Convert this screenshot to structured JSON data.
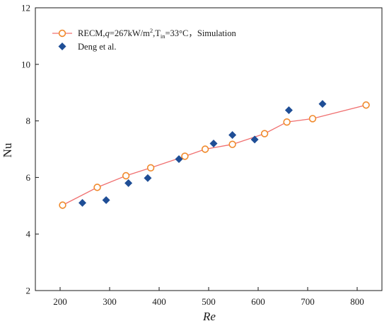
{
  "chart_data": {
    "type": "scatter",
    "xlabel": "Re",
    "ylabel": "Nu",
    "xlim": [
      150,
      850
    ],
    "ylim": [
      2,
      12
    ],
    "xticks": [
      200,
      300,
      400,
      500,
      600,
      700,
      800
    ],
    "yticks": [
      2,
      4,
      6,
      8,
      10,
      12
    ],
    "grid": false,
    "legend_position": "top-left",
    "series": [
      {
        "name": "RECM,q=267kW/m2,Tin=33°C，Simulation",
        "legend_parts": {
          "a": "RECM,",
          "q": "q",
          "b": "=267kW/m",
          "sup": "2",
          "c": ",T",
          "sub": "in",
          "d": "=33°C，Simulation"
        },
        "kind": "line+open-circle",
        "color": "#f08a2c",
        "line_color": "#f07070",
        "x": [
          205,
          275,
          333,
          383,
          452,
          493,
          548,
          613,
          658,
          710,
          818
        ],
        "y": [
          5.02,
          5.65,
          6.06,
          6.34,
          6.75,
          7.0,
          7.17,
          7.55,
          7.96,
          8.08,
          8.56
        ]
      },
      {
        "name": "Deng et al.",
        "kind": "diamond",
        "color": "#1f4e96",
        "x": [
          245,
          293,
          338,
          377,
          440,
          510,
          548,
          593,
          662,
          730
        ],
        "y": [
          5.1,
          5.2,
          5.8,
          5.98,
          6.65,
          7.2,
          7.5,
          7.34,
          8.38,
          8.6
        ]
      }
    ]
  }
}
